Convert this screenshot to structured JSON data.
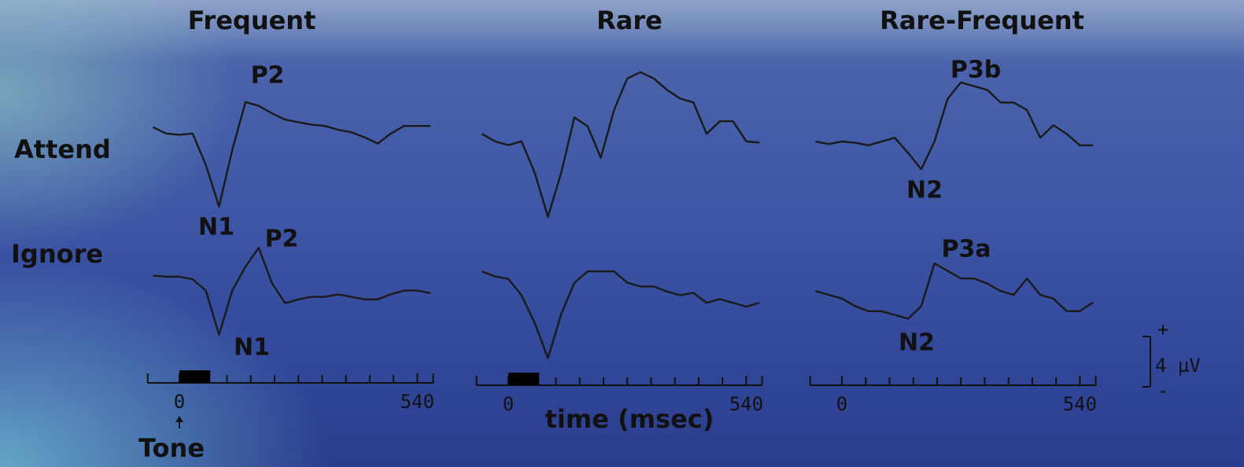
{
  "chart_data": [
    {
      "type": "line",
      "title": "Frequent",
      "x": [
        -60,
        -30,
        0,
        30,
        60,
        90,
        120,
        150,
        180,
        210,
        240,
        270,
        300,
        330,
        360,
        390,
        420,
        450,
        480,
        510,
        540,
        570
      ],
      "xlim": [
        -72,
        576
      ],
      "xticks": [
        0,
        540
      ],
      "minor_xticks": [
        54,
        108,
        162,
        216,
        270,
        324,
        378,
        432,
        486
      ],
      "stimulus": [
        0,
        70
      ],
      "stimulus_label": "Tone",
      "series": [
        {
          "name": "Attend",
          "color": "#1a1a1a",
          "values": [
            0.2,
            -0.3,
            -0.4,
            -0.3,
            -2.8,
            -6.1,
            -1.6,
            2.2,
            1.9,
            1.3,
            0.8,
            0.6,
            0.4,
            0.3,
            0,
            -0.2,
            -0.6,
            -1.1,
            -0.3,
            0.3,
            0.3,
            0.3
          ]
        },
        {
          "name": "Ignore",
          "color": "#1a1a1a",
          "values": [
            0.1,
            0,
            0,
            -0.2,
            -1.1,
            -4.6,
            -1.1,
            0.8,
            2.3,
            -0.5,
            -2.1,
            -1.8,
            -1.6,
            -1.6,
            -1.4,
            -1.6,
            -1.8,
            -1.8,
            -1.4,
            -1.1,
            -1.1,
            -1.3
          ]
        }
      ],
      "annotations": [
        "P2",
        "N1",
        "P2",
        "N1"
      ]
    },
    {
      "type": "line",
      "title": "Rare",
      "xlabel": "time (msec)",
      "x": [
        -60,
        -30,
        0,
        30,
        60,
        90,
        120,
        150,
        180,
        210,
        240,
        270,
        300,
        330,
        360,
        390,
        420,
        450,
        480,
        510,
        540,
        570
      ],
      "xlim": [
        -72,
        576
      ],
      "xticks": [
        0,
        540
      ],
      "minor_xticks": [
        54,
        108,
        162,
        216,
        270,
        324,
        378,
        432,
        486
      ],
      "stimulus": [
        0,
        70
      ],
      "series": [
        {
          "color": "#1a1a1a",
          "values": [
            0.3,
            -0.3,
            -0.6,
            -0.3,
            -2.8,
            -6.3,
            -2.8,
            1.6,
            0.9,
            -1.6,
            2.2,
            4.7,
            5.2,
            4.7,
            3.8,
            3.1,
            2.8,
            0.3,
            1.3,
            1.3,
            -0.3,
            -0.4
          ]
        },
        {
          "color": "#1a1a1a",
          "values": [
            0.3,
            -0.1,
            -0.3,
            -1.6,
            -3.8,
            -6.6,
            -3.1,
            -0.6,
            0.3,
            0.3,
            0.3,
            -0.6,
            -0.9,
            -0.9,
            -1.3,
            -1.6,
            -1.4,
            -2.2,
            -1.9,
            -2.2,
            -2.5,
            -2.2
          ]
        }
      ]
    },
    {
      "type": "line",
      "title": "Rare-Frequent",
      "x": [
        -60,
        -30,
        0,
        30,
        60,
        90,
        120,
        150,
        180,
        210,
        240,
        270,
        300,
        330,
        360,
        390,
        420,
        450,
        480,
        510,
        540,
        570
      ],
      "xlim": [
        -72,
        576
      ],
      "xticks": [
        0,
        540
      ],
      "minor_xticks": [
        54,
        108,
        162,
        216,
        270,
        324,
        378,
        432,
        486
      ],
      "series": [
        {
          "color": "#1a1a1a",
          "values": [
            0,
            -0.2,
            0,
            -0.1,
            -0.3,
            0,
            0.3,
            -0.9,
            -2.2,
            0,
            3.4,
            4.7,
            4.4,
            4.1,
            3.1,
            3.1,
            2.5,
            0.3,
            1.3,
            0.6,
            -0.3,
            -0.3
          ]
        },
        {
          "color": "#1a1a1a",
          "values": [
            0.3,
            0,
            -0.3,
            -0.9,
            -1.3,
            -1.3,
            -1.6,
            -1.9,
            -0.9,
            2.5,
            1.9,
            1.3,
            1.3,
            0.9,
            0.3,
            0,
            1.3,
            0,
            -0.3,
            -1.3,
            -1.3,
            -0.6
          ]
        }
      ],
      "annotations": [
        "P3b",
        "N2",
        "P3a",
        "N2"
      ],
      "scale_bar": 4,
      "scale_bar_label": "4 µV",
      "scale_plus": "+",
      "scale_minus": "-"
    }
  ]
}
